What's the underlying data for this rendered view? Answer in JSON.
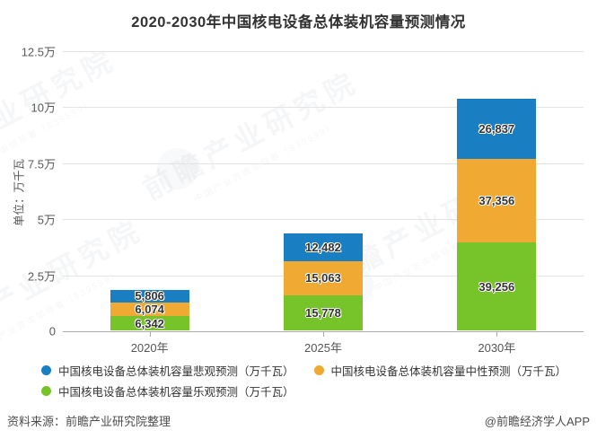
{
  "title": "2020-2030年中国核电设备总体装机容量预测情况",
  "y_axis": {
    "unit_label": "单位：万千瓦",
    "ticks": [
      "12.5万",
      "10万",
      "7.5万",
      "5万",
      "2.5万",
      "0"
    ],
    "max": 125000
  },
  "chart_data": {
    "type": "bar",
    "stacked": true,
    "title": "2020-2030年中国核电设备总体装机容量预测情况",
    "xlabel": "",
    "ylabel": "单位：万千瓦",
    "ylim": [
      0,
      125000
    ],
    "grid": true,
    "legend_position": "bottom",
    "categories": [
      "2020年",
      "2025年",
      "2030年"
    ],
    "series": [
      {
        "name": "中国核电设备总体装机容量悲观预测（万千瓦）",
        "color": "#1a7ec3",
        "stack_position": "top",
        "values": [
          5806,
          12482,
          26837
        ]
      },
      {
        "name": "中国核电设备总体装机容量中性预测（万千瓦）",
        "color": "#f0a932",
        "stack_position": "middle",
        "values": [
          6074,
          15063,
          37356
        ]
      },
      {
        "name": "中国核电设备总体装机容量乐观预测（万千瓦）",
        "color": "#76c32a",
        "stack_position": "bottom",
        "values": [
          6342,
          15778,
          39256
        ]
      }
    ],
    "totals": [
      18222,
      43323,
      103449
    ]
  },
  "footer": {
    "source": "资料来源：前瞻产业研究院整理",
    "credit": "@前瞻经济学人APP"
  },
  "watermark": {
    "main": "前瞻产业研究院",
    "sub": "中国产业咨询领导者（839599）"
  }
}
